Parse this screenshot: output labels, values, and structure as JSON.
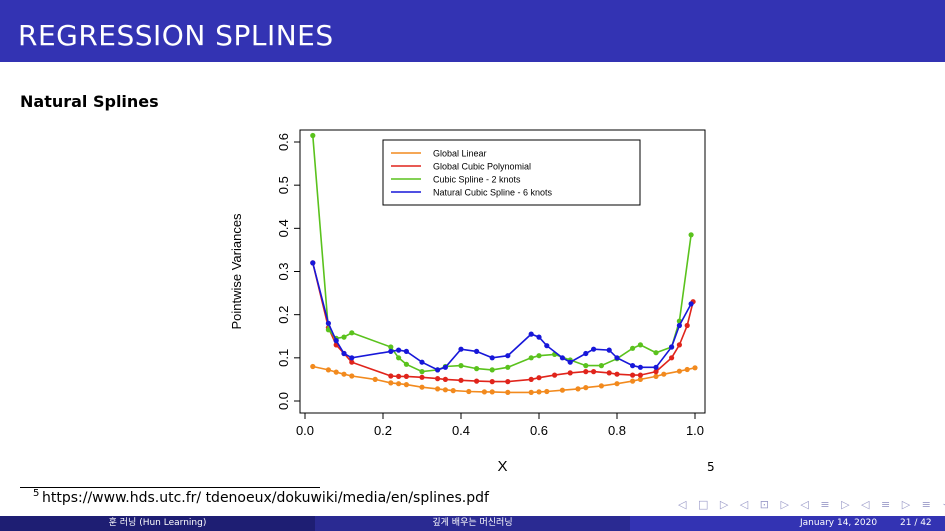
{
  "slide": {
    "title": "REGRESSION SPLINES",
    "subtitle": "Natural Splines",
    "footnote_mark": "5",
    "footnote_url": "https://www.hds.utc.fr/ tdenoeux/dokuwiki/media/en/splines.pdf",
    "footnote_ref": "5",
    "nav_symbols": "◁ □ ▷ ◁ ⊡ ▷ ◁ ≡ ▷ ◁ ≡ ▷ ≡ ∽ ⌕",
    "footer": {
      "author": "훈 러닝 (Hun Learning)",
      "course": "깊게 배우는 머신러닝",
      "date": "January 14, 2020",
      "page": "21 / 42"
    }
  },
  "colors": {
    "title_bar": "#3333b3",
    "global_linear": "#f28a1e",
    "global_cubic": "#e0241b",
    "cubic_spline": "#5ac21d",
    "natural_spline": "#1717d9"
  },
  "chart_data": {
    "type": "line",
    "xlabel": "X",
    "ylabel": "Pointwise Variances",
    "xlim": [
      0.0,
      1.0
    ],
    "ylim": [
      0.0,
      0.6
    ],
    "x_ticks": [
      "0.0",
      "0.2",
      "0.4",
      "0.6",
      "0.8",
      "1.0"
    ],
    "y_ticks": [
      "0.0",
      "0.1",
      "0.2",
      "0.3",
      "0.4",
      "0.5",
      "0.6"
    ],
    "legend_position": "top-right",
    "grid": false,
    "series": [
      {
        "name": "Global Linear",
        "color": "#f28a1e",
        "points": [
          [
            0.02,
            0.08
          ],
          [
            0.06,
            0.072
          ],
          [
            0.08,
            0.067
          ],
          [
            0.1,
            0.062
          ],
          [
            0.12,
            0.058
          ],
          [
            0.18,
            0.05
          ],
          [
            0.22,
            0.042
          ],
          [
            0.24,
            0.04
          ],
          [
            0.26,
            0.038
          ],
          [
            0.3,
            0.032
          ],
          [
            0.34,
            0.028
          ],
          [
            0.36,
            0.026
          ],
          [
            0.38,
            0.024
          ],
          [
            0.42,
            0.022
          ],
          [
            0.46,
            0.021
          ],
          [
            0.48,
            0.021
          ],
          [
            0.52,
            0.02
          ],
          [
            0.58,
            0.02
          ],
          [
            0.6,
            0.021
          ],
          [
            0.62,
            0.022
          ],
          [
            0.66,
            0.025
          ],
          [
            0.7,
            0.028
          ],
          [
            0.72,
            0.031
          ],
          [
            0.76,
            0.035
          ],
          [
            0.8,
            0.04
          ],
          [
            0.84,
            0.046
          ],
          [
            0.86,
            0.05
          ],
          [
            0.9,
            0.057
          ],
          [
            0.92,
            0.062
          ],
          [
            0.96,
            0.069
          ],
          [
            0.98,
            0.073
          ],
          [
            1.0,
            0.077
          ]
        ]
      },
      {
        "name": "Global Cubic Polynomial",
        "color": "#e0241b",
        "points": [
          [
            0.02,
            0.32
          ],
          [
            0.06,
            0.17
          ],
          [
            0.08,
            0.13
          ],
          [
            0.1,
            0.11
          ],
          [
            0.12,
            0.09
          ],
          [
            0.22,
            0.058
          ],
          [
            0.24,
            0.057
          ],
          [
            0.26,
            0.057
          ],
          [
            0.3,
            0.055
          ],
          [
            0.34,
            0.052
          ],
          [
            0.36,
            0.05
          ],
          [
            0.4,
            0.048
          ],
          [
            0.44,
            0.046
          ],
          [
            0.48,
            0.045
          ],
          [
            0.52,
            0.045
          ],
          [
            0.58,
            0.05
          ],
          [
            0.6,
            0.054
          ],
          [
            0.64,
            0.06
          ],
          [
            0.68,
            0.065
          ],
          [
            0.72,
            0.068
          ],
          [
            0.74,
            0.068
          ],
          [
            0.78,
            0.065
          ],
          [
            0.8,
            0.062
          ],
          [
            0.84,
            0.06
          ],
          [
            0.86,
            0.06
          ],
          [
            0.9,
            0.068
          ],
          [
            0.94,
            0.1
          ],
          [
            0.96,
            0.13
          ],
          [
            0.98,
            0.175
          ],
          [
            0.995,
            0.23
          ]
        ]
      },
      {
        "name": "Cubic Spline - 2 knots",
        "color": "#5ac21d",
        "points": [
          [
            0.02,
            0.615
          ],
          [
            0.06,
            0.165
          ],
          [
            0.08,
            0.145
          ],
          [
            0.1,
            0.148
          ],
          [
            0.12,
            0.158
          ],
          [
            0.22,
            0.125
          ],
          [
            0.24,
            0.1
          ],
          [
            0.26,
            0.085
          ],
          [
            0.3,
            0.068
          ],
          [
            0.34,
            0.072
          ],
          [
            0.36,
            0.08
          ],
          [
            0.4,
            0.082
          ],
          [
            0.44,
            0.075
          ],
          [
            0.48,
            0.072
          ],
          [
            0.52,
            0.078
          ],
          [
            0.58,
            0.1
          ],
          [
            0.6,
            0.105
          ],
          [
            0.64,
            0.108
          ],
          [
            0.68,
            0.095
          ],
          [
            0.72,
            0.082
          ],
          [
            0.76,
            0.082
          ],
          [
            0.8,
            0.098
          ],
          [
            0.84,
            0.122
          ],
          [
            0.86,
            0.13
          ],
          [
            0.9,
            0.112
          ],
          [
            0.94,
            0.125
          ],
          [
            0.96,
            0.185
          ],
          [
            0.99,
            0.385
          ]
        ]
      },
      {
        "name": "Natural Cubic Spline - 6 knots",
        "color": "#1717d9",
        "points": [
          [
            0.02,
            0.32
          ],
          [
            0.06,
            0.18
          ],
          [
            0.08,
            0.14
          ],
          [
            0.1,
            0.11
          ],
          [
            0.12,
            0.1
          ],
          [
            0.22,
            0.115
          ],
          [
            0.24,
            0.118
          ],
          [
            0.26,
            0.115
          ],
          [
            0.3,
            0.09
          ],
          [
            0.34,
            0.072
          ],
          [
            0.36,
            0.078
          ],
          [
            0.4,
            0.12
          ],
          [
            0.44,
            0.115
          ],
          [
            0.48,
            0.1
          ],
          [
            0.52,
            0.105
          ],
          [
            0.58,
            0.155
          ],
          [
            0.6,
            0.148
          ],
          [
            0.62,
            0.128
          ],
          [
            0.66,
            0.1
          ],
          [
            0.68,
            0.09
          ],
          [
            0.72,
            0.11
          ],
          [
            0.74,
            0.12
          ],
          [
            0.78,
            0.118
          ],
          [
            0.8,
            0.1
          ],
          [
            0.84,
            0.082
          ],
          [
            0.86,
            0.078
          ],
          [
            0.9,
            0.078
          ],
          [
            0.94,
            0.125
          ],
          [
            0.96,
            0.175
          ],
          [
            0.99,
            0.225
          ]
        ]
      }
    ]
  }
}
